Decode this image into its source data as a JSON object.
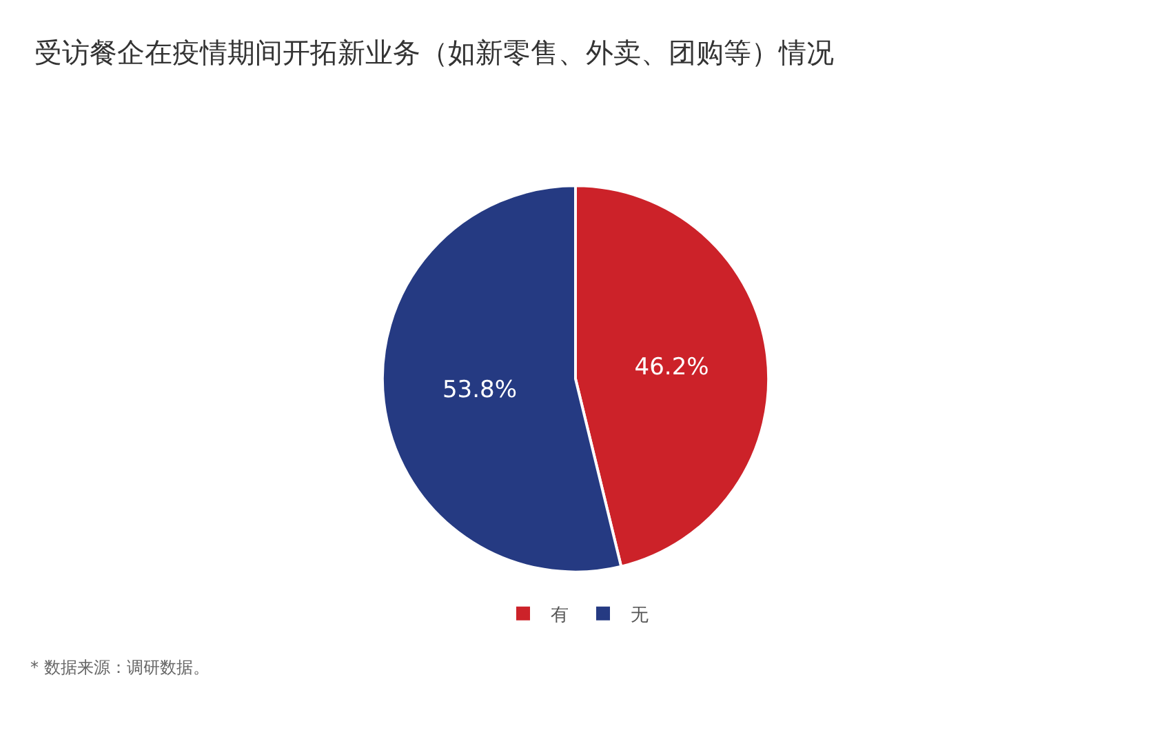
{
  "chart_data": {
    "type": "pie",
    "title": "受访餐企在疫情期间开拓新业务（如新零售、外卖、团购等）情况",
    "categories": [
      "有",
      "无"
    ],
    "values": [
      46.2,
      53.8
    ],
    "colors": [
      "#cc2229",
      "#253a82"
    ],
    "value_labels": [
      "46.2%",
      "53.8%"
    ],
    "legend": "bottom",
    "annotations": [
      "* 数据来源：调研数据。"
    ]
  }
}
